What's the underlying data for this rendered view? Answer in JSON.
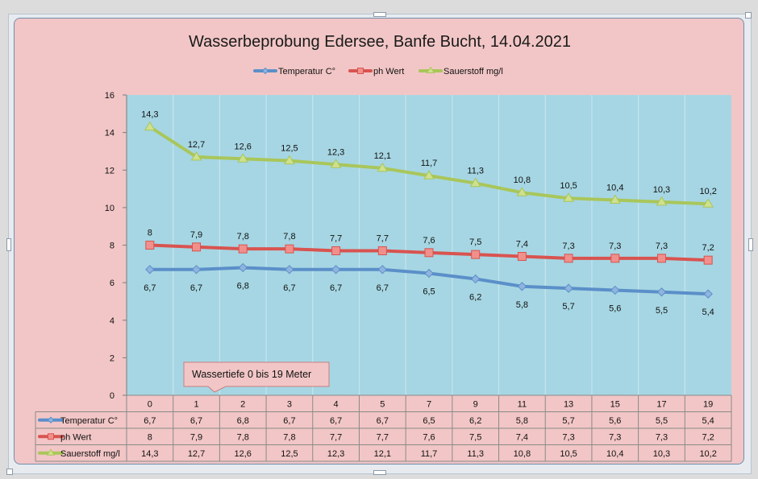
{
  "chart_data": {
    "type": "line",
    "title": "Wasserbeprobung Edersee, Banfe Bucht, 14.04.2021",
    "categories": [
      "0",
      "1",
      "2",
      "3",
      "4",
      "5",
      "7",
      "9",
      "11",
      "13",
      "15",
      "17",
      "19"
    ],
    "ylim": [
      0,
      16
    ],
    "yticks": [
      "0",
      "2",
      "4",
      "6",
      "8",
      "10",
      "12",
      "14",
      "16"
    ],
    "grid": "vertical",
    "legend_position": "top",
    "series": [
      {
        "name": "Temperatur C°",
        "color": "#5b8fc9",
        "marker": "diamond",
        "label_position": "below",
        "values": [
          6.7,
          6.7,
          6.8,
          6.7,
          6.7,
          6.7,
          6.5,
          6.2,
          5.8,
          5.7,
          5.6,
          5.5,
          5.4
        ],
        "labels": [
          "6,7",
          "6,7",
          "6,8",
          "6,7",
          "6,7",
          "6,7",
          "6,5",
          "6,2",
          "5,8",
          "5,7",
          "5,6",
          "5,5",
          "5,4"
        ]
      },
      {
        "name": "ph Wert",
        "color": "#d9534f",
        "marker": "square",
        "label_position": "above",
        "values": [
          8,
          7.9,
          7.8,
          7.8,
          7.7,
          7.7,
          7.6,
          7.5,
          7.4,
          7.3,
          7.3,
          7.3,
          7.2
        ],
        "labels": [
          "8",
          "7,9",
          "7,8",
          "7,8",
          "7,7",
          "7,7",
          "7,6",
          "7,5",
          "7,4",
          "7,3",
          "7,3",
          "7,3",
          "7,2"
        ]
      },
      {
        "name": "Sauerstoff mg/l",
        "color": "#a9c65a",
        "marker": "triangle",
        "label_position": "above",
        "values": [
          14.3,
          12.7,
          12.6,
          12.5,
          12.3,
          12.1,
          11.7,
          11.3,
          10.8,
          10.5,
          10.4,
          10.3,
          10.2
        ],
        "labels": [
          "14,3",
          "12,7",
          "12,6",
          "12,5",
          "12,3",
          "12,1",
          "11,7",
          "11,3",
          "10,8",
          "10,5",
          "10,4",
          "10,3",
          "10,2"
        ]
      }
    ],
    "annotation": "Wassertiefe 0 bis 19 Meter",
    "data_table": true
  },
  "colors": {
    "chart_background": "#f2c6c6",
    "plot_background": "#a6d6e3",
    "grid_line": "#c7e4ec"
  }
}
